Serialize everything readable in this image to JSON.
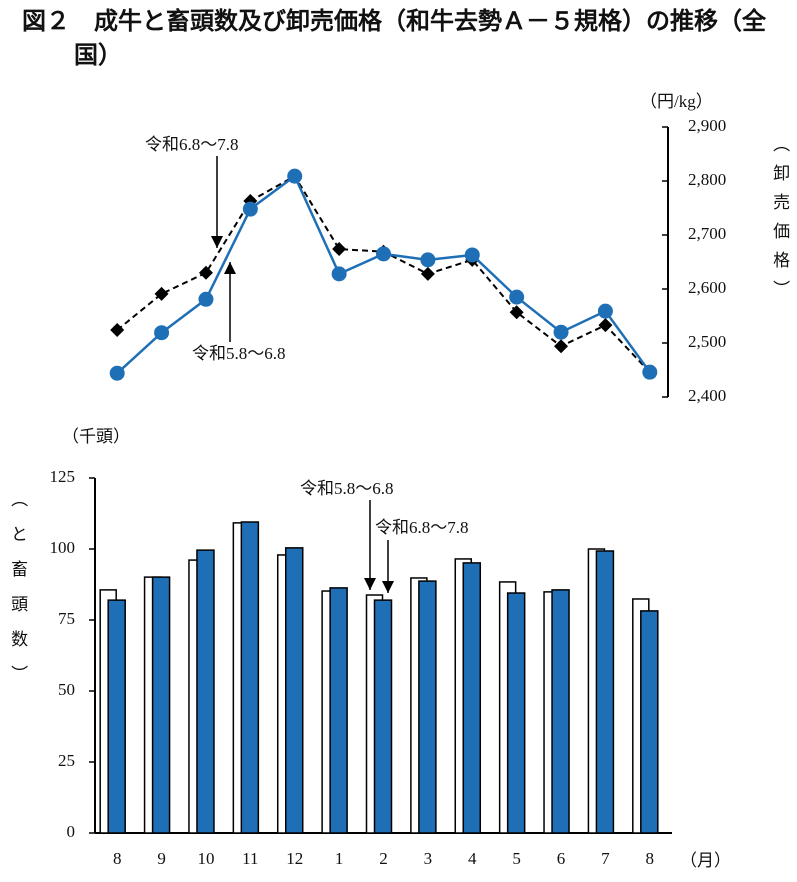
{
  "title": "図２　成牛と畜頭数及び卸売価格（和牛去勢Ａ－５規格）の推移（全国）",
  "chart_data": [
    {
      "type": "line",
      "y_unit": "（円/kg）",
      "ylabel": "（卸売価格）",
      "ylim": [
        2400,
        2900
      ],
      "yticks": [
        {
          "value": 2400,
          "label": "2,400"
        },
        {
          "value": 2500,
          "label": "2,500"
        },
        {
          "value": 2600,
          "label": "2,600"
        },
        {
          "value": 2700,
          "label": "2,700"
        },
        {
          "value": 2800,
          "label": "2,800"
        },
        {
          "value": 2900,
          "label": "2,900"
        }
      ],
      "series": [
        {
          "name": "令和5.8～6.8",
          "color": "#000000",
          "marker": "diamond",
          "dashed": true,
          "values": [
            2524,
            2591,
            2630,
            2763,
            2809,
            2674,
            2669,
            2628,
            2654,
            2557,
            2494,
            2533,
            2446
          ]
        },
        {
          "name": "令和6.8～7.8",
          "color": "#1f6fb6",
          "marker": "circle",
          "dashed": false,
          "values": [
            2444,
            2519,
            2581,
            2748,
            2809,
            2628,
            2665,
            2654,
            2663,
            2585,
            2520,
            2559,
            2446
          ]
        }
      ]
    },
    {
      "type": "bar",
      "y_unit": "（千頭）",
      "ylabel": "（と畜頭数）",
      "x_unit": "（月）",
      "categories": [
        "8",
        "9",
        "10",
        "11",
        "12",
        "1",
        "2",
        "3",
        "4",
        "5",
        "6",
        "7",
        "8"
      ],
      "ylim": [
        0,
        125
      ],
      "yticks": [
        0,
        25,
        50,
        75,
        100,
        125
      ],
      "series": [
        {
          "name": "令和5.8～6.8",
          "color": "#ffffff",
          "values": [
            85.6,
            90.1,
            96.1,
            109.2,
            97.9,
            85.2,
            83.8,
            89.8,
            96.5,
            88.4,
            84.9,
            100.0,
            82.4
          ]
        },
        {
          "name": "令和6.8～7.8",
          "color": "#1f6fb6",
          "values": [
            82.0,
            90.1,
            99.6,
            109.5,
            100.4,
            86.3,
            82.0,
            88.7,
            95.1,
            84.5,
            85.6,
            99.3,
            78.2
          ]
        }
      ]
    }
  ]
}
